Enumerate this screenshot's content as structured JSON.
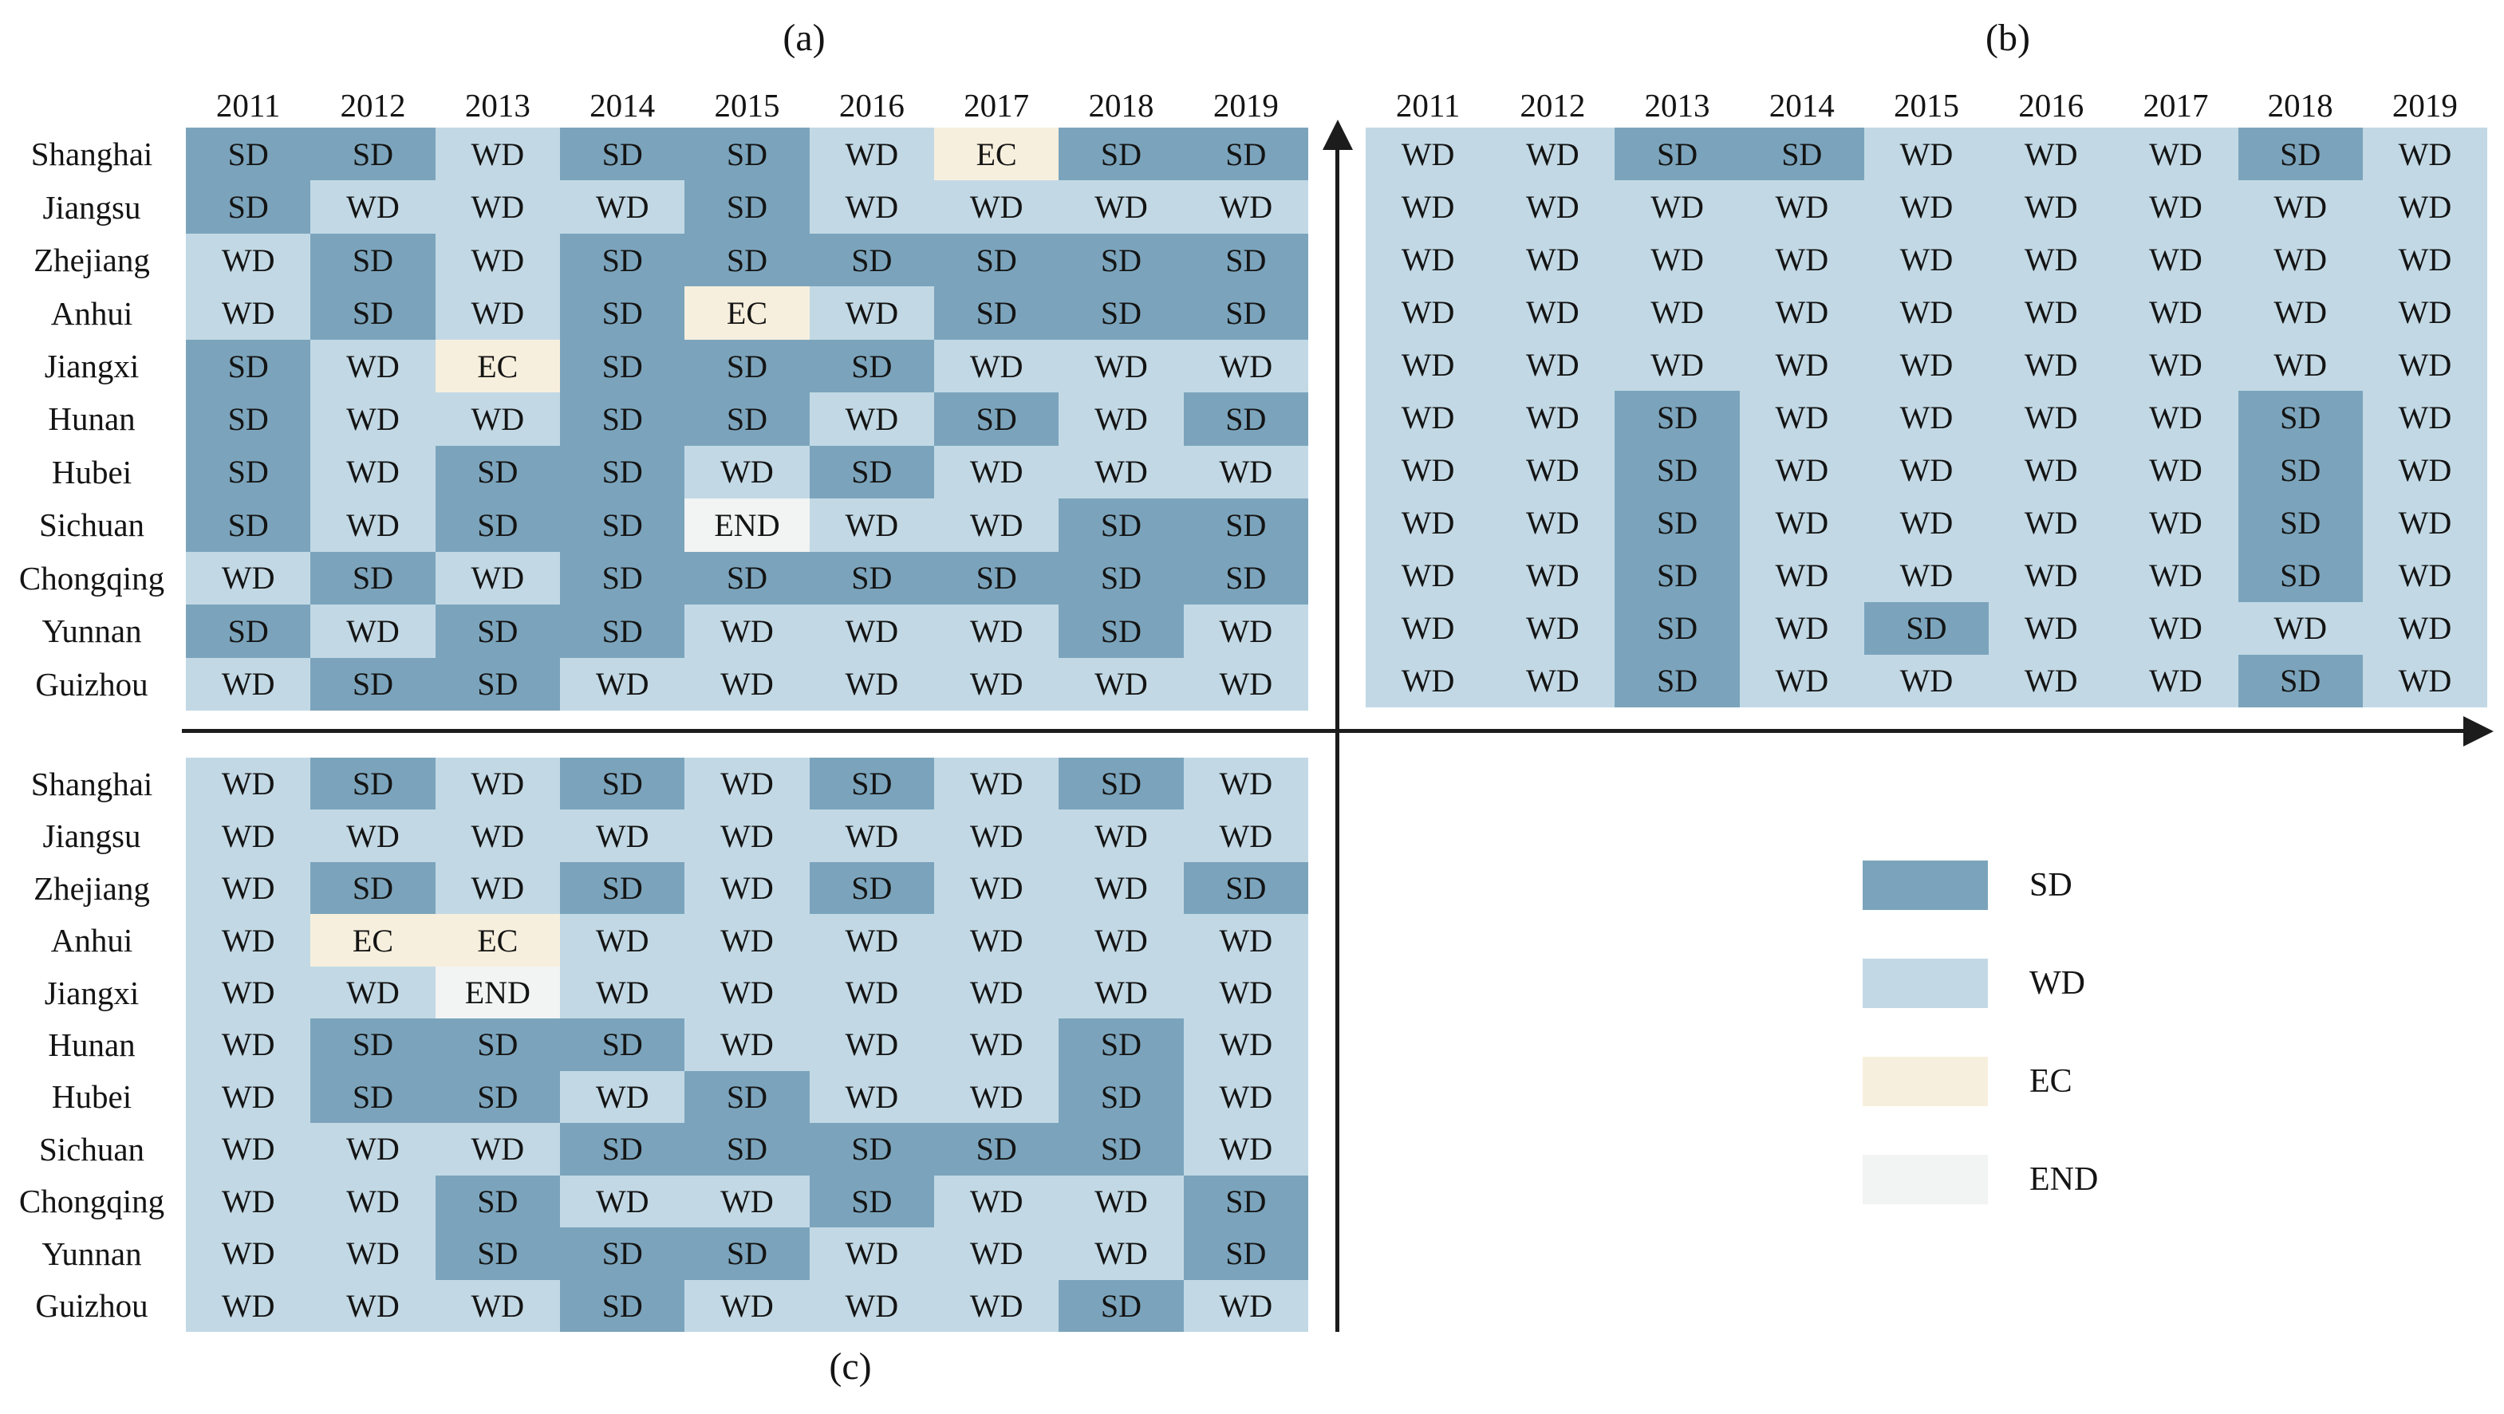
{
  "figure": {
    "captions": {
      "a": "(a)",
      "b": "(b)",
      "c": "(c)"
    },
    "years": [
      "2011",
      "2012",
      "2013",
      "2014",
      "2015",
      "2016",
      "2017",
      "2018",
      "2019"
    ],
    "provinces": [
      "Shanghai",
      "Jiangsu",
      "Zhejiang",
      "Anhui",
      "Jiangxi",
      "Hunan",
      "Hubei",
      "Sichuan",
      "Chongqing",
      "Yunnan",
      "Guizhou"
    ],
    "colors": {
      "SD": "#7ba4bc",
      "WD": "#c2d9e5",
      "EC": "#f7efdd",
      "END": "#f2f3f3"
    },
    "legend": [
      "SD",
      "WD",
      "EC",
      "END"
    ],
    "axis_color": "#1c1c1c"
  },
  "chart_data": [
    {
      "type": "heatmap",
      "panel": "a",
      "title": "(a)",
      "x": [
        "2011",
        "2012",
        "2013",
        "2014",
        "2015",
        "2016",
        "2017",
        "2018",
        "2019"
      ],
      "y": [
        "Shanghai",
        "Jiangsu",
        "Zhejiang",
        "Anhui",
        "Jiangxi",
        "Hunan",
        "Hubei",
        "Sichuan",
        "Chongqing",
        "Yunnan",
        "Guizhou"
      ],
      "values": [
        [
          "SD",
          "SD",
          "WD",
          "SD",
          "SD",
          "WD",
          "EC",
          "SD",
          "SD"
        ],
        [
          "SD",
          "WD",
          "WD",
          "WD",
          "SD",
          "WD",
          "WD",
          "WD",
          "WD"
        ],
        [
          "WD",
          "SD",
          "WD",
          "SD",
          "SD",
          "SD",
          "SD",
          "SD",
          "SD"
        ],
        [
          "WD",
          "SD",
          "WD",
          "SD",
          "EC",
          "WD",
          "SD",
          "SD",
          "SD"
        ],
        [
          "SD",
          "WD",
          "EC",
          "SD",
          "SD",
          "SD",
          "WD",
          "WD",
          "WD"
        ],
        [
          "SD",
          "WD",
          "WD",
          "SD",
          "SD",
          "WD",
          "SD",
          "WD",
          "SD"
        ],
        [
          "SD",
          "WD",
          "SD",
          "SD",
          "WD",
          "SD",
          "WD",
          "WD",
          "WD"
        ],
        [
          "SD",
          "WD",
          "SD",
          "SD",
          "END",
          "WD",
          "WD",
          "SD",
          "SD"
        ],
        [
          "WD",
          "SD",
          "WD",
          "SD",
          "SD",
          "SD",
          "SD",
          "SD",
          "SD"
        ],
        [
          "SD",
          "WD",
          "SD",
          "SD",
          "WD",
          "WD",
          "WD",
          "SD",
          "WD"
        ],
        [
          "WD",
          "SD",
          "SD",
          "WD",
          "WD",
          "WD",
          "WD",
          "WD",
          "WD"
        ]
      ],
      "legend_position": "none",
      "grid": false
    },
    {
      "type": "heatmap",
      "panel": "b",
      "title": "(b)",
      "x": [
        "2011",
        "2012",
        "2013",
        "2014",
        "2015",
        "2016",
        "2017",
        "2018",
        "2019"
      ],
      "y": [
        "Shanghai",
        "Jiangsu",
        "Zhejiang",
        "Anhui",
        "Jiangxi",
        "Hunan",
        "Hubei",
        "Sichuan",
        "Chongqing",
        "Yunnan",
        "Guizhou"
      ],
      "values": [
        [
          "WD",
          "WD",
          "SD",
          "SD",
          "WD",
          "WD",
          "WD",
          "SD",
          "WD"
        ],
        [
          "WD",
          "WD",
          "WD",
          "WD",
          "WD",
          "WD",
          "WD",
          "WD",
          "WD"
        ],
        [
          "WD",
          "WD",
          "WD",
          "WD",
          "WD",
          "WD",
          "WD",
          "WD",
          "WD"
        ],
        [
          "WD",
          "WD",
          "WD",
          "WD",
          "WD",
          "WD",
          "WD",
          "WD",
          "WD"
        ],
        [
          "WD",
          "WD",
          "WD",
          "WD",
          "WD",
          "WD",
          "WD",
          "WD",
          "WD"
        ],
        [
          "WD",
          "WD",
          "SD",
          "WD",
          "WD",
          "WD",
          "WD",
          "SD",
          "WD"
        ],
        [
          "WD",
          "WD",
          "SD",
          "WD",
          "WD",
          "WD",
          "WD",
          "SD",
          "WD"
        ],
        [
          "WD",
          "WD",
          "SD",
          "WD",
          "WD",
          "WD",
          "WD",
          "SD",
          "WD"
        ],
        [
          "WD",
          "WD",
          "SD",
          "WD",
          "WD",
          "WD",
          "WD",
          "SD",
          "WD"
        ],
        [
          "WD",
          "WD",
          "SD",
          "WD",
          "SD",
          "WD",
          "WD",
          "WD",
          "WD"
        ],
        [
          "WD",
          "WD",
          "SD",
          "WD",
          "WD",
          "WD",
          "WD",
          "SD",
          "WD"
        ]
      ],
      "legend_position": "below-right",
      "grid": false
    },
    {
      "type": "heatmap",
      "panel": "c",
      "title": "(c)",
      "x": [
        "2011",
        "2012",
        "2013",
        "2014",
        "2015",
        "2016",
        "2017",
        "2018",
        "2019"
      ],
      "y": [
        "Shanghai",
        "Jiangsu",
        "Zhejiang",
        "Anhui",
        "Jiangxi",
        "Hunan",
        "Hubei",
        "Sichuan",
        "Chongqing",
        "Yunnan",
        "Guizhou"
      ],
      "values": [
        [
          "WD",
          "SD",
          "WD",
          "SD",
          "WD",
          "SD",
          "WD",
          "SD",
          "WD"
        ],
        [
          "WD",
          "WD",
          "WD",
          "WD",
          "WD",
          "WD",
          "WD",
          "WD",
          "WD"
        ],
        [
          "WD",
          "SD",
          "WD",
          "SD",
          "WD",
          "SD",
          "WD",
          "WD",
          "SD"
        ],
        [
          "WD",
          "EC",
          "EC",
          "WD",
          "WD",
          "WD",
          "WD",
          "WD",
          "WD"
        ],
        [
          "WD",
          "WD",
          "END",
          "WD",
          "WD",
          "WD",
          "WD",
          "WD",
          "WD"
        ],
        [
          "WD",
          "SD",
          "SD",
          "SD",
          "WD",
          "WD",
          "WD",
          "SD",
          "WD"
        ],
        [
          "WD",
          "SD",
          "SD",
          "WD",
          "SD",
          "WD",
          "WD",
          "SD",
          "WD"
        ],
        [
          "WD",
          "WD",
          "WD",
          "SD",
          "SD",
          "SD",
          "SD",
          "SD",
          "WD"
        ],
        [
          "WD",
          "WD",
          "SD",
          "WD",
          "WD",
          "SD",
          "WD",
          "WD",
          "SD"
        ],
        [
          "WD",
          "WD",
          "SD",
          "SD",
          "SD",
          "WD",
          "WD",
          "WD",
          "SD"
        ],
        [
          "WD",
          "WD",
          "WD",
          "SD",
          "WD",
          "WD",
          "WD",
          "SD",
          "WD"
        ]
      ],
      "legend_position": "none",
      "grid": false
    }
  ]
}
